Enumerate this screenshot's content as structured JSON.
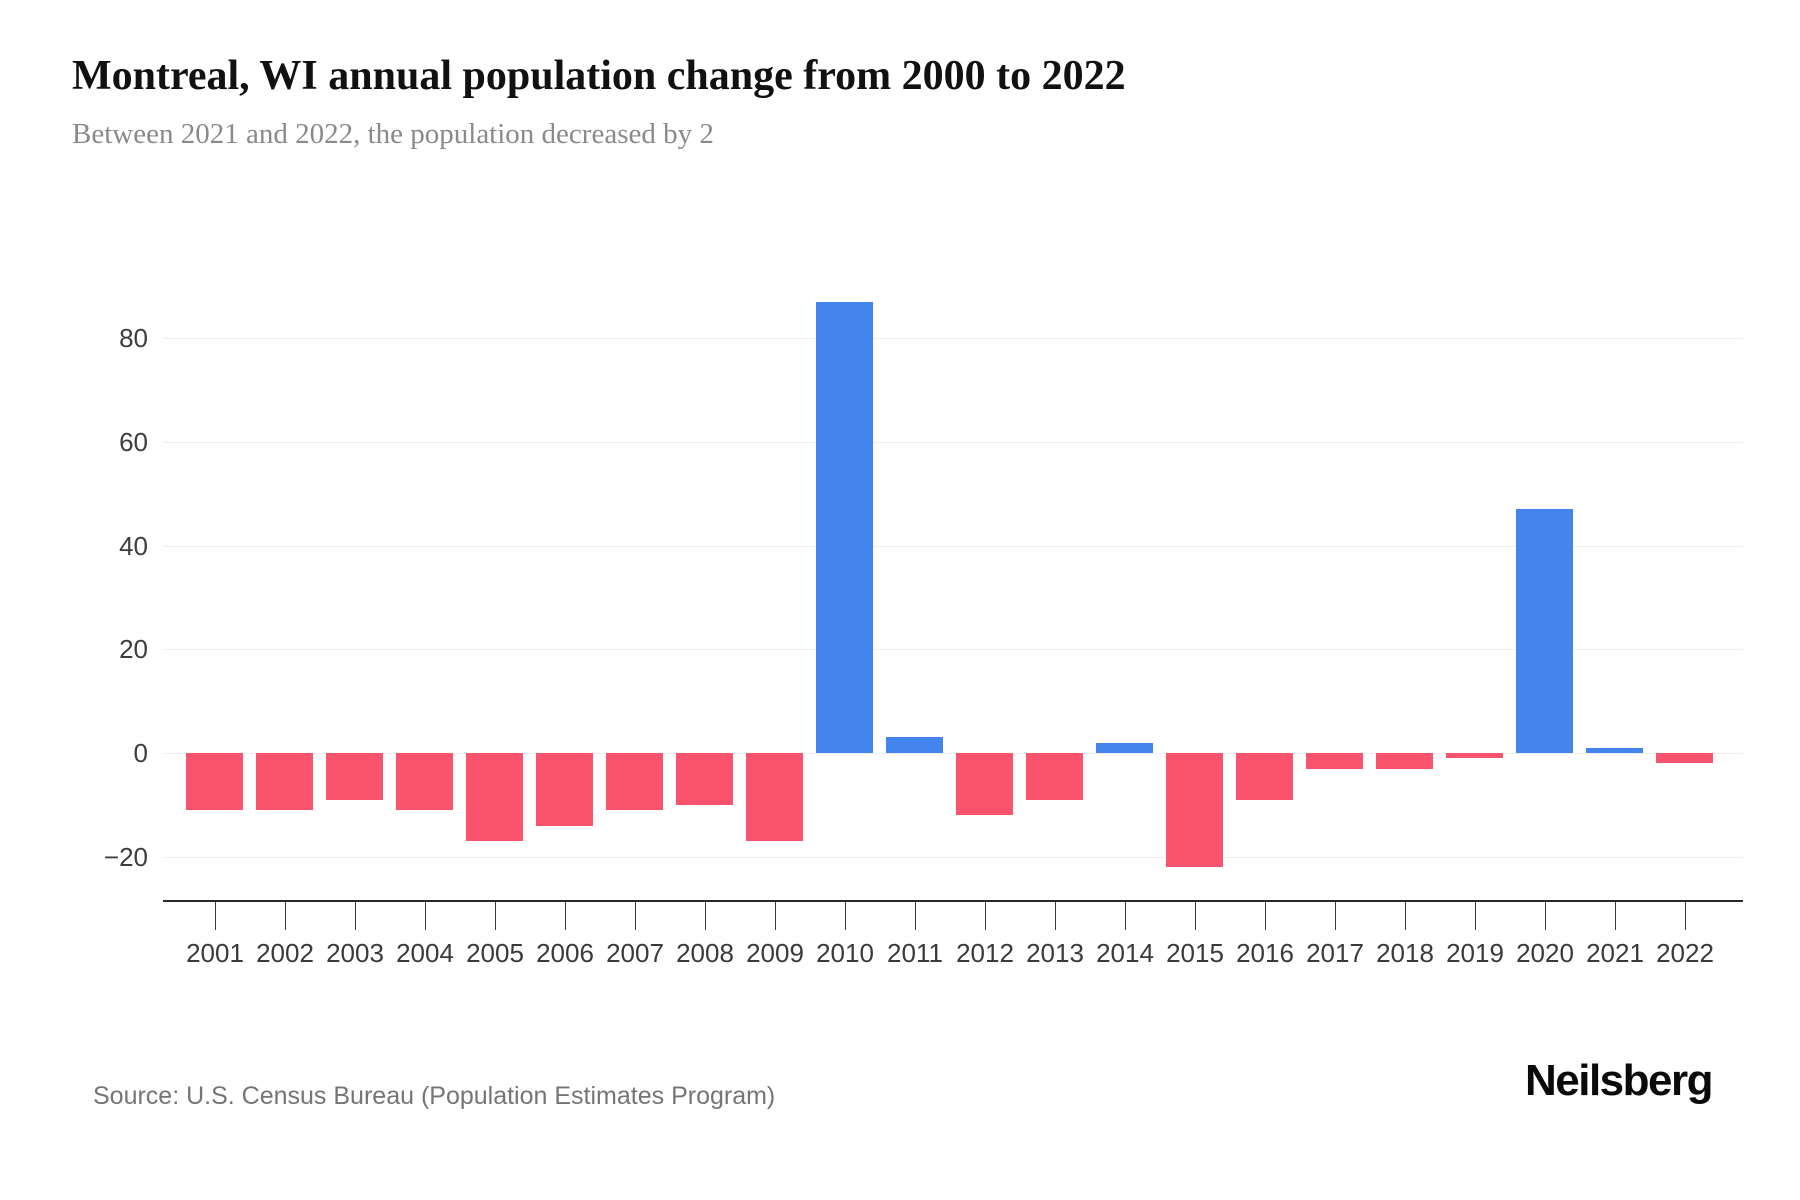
{
  "header": {
    "title": "Montreal, WI annual population change from 2000 to 2022",
    "subtitle": "Between 2021 and 2022, the population decreased by 2"
  },
  "footer": {
    "source": "Source: U.S. Census Bureau (Population Estimates Program)",
    "brand": "Neilsberg"
  },
  "chart_data": {
    "type": "bar",
    "title": "Montreal, WI annual population change from 2000 to 2022",
    "xlabel": "",
    "ylabel": "",
    "categories": [
      "2001",
      "2002",
      "2003",
      "2004",
      "2005",
      "2006",
      "2007",
      "2008",
      "2009",
      "2010",
      "2011",
      "2012",
      "2013",
      "2014",
      "2015",
      "2016",
      "2017",
      "2018",
      "2019",
      "2020",
      "2021",
      "2022"
    ],
    "values": [
      -11,
      -11,
      -9,
      -11,
      -17,
      -14,
      -11,
      -10,
      -17,
      87,
      3,
      -12,
      -9,
      2,
      -22,
      -9,
      -3,
      -3,
      -1,
      47,
      1,
      -2
    ],
    "ylim": [
      -28.5,
      95
    ],
    "yticks": [
      80,
      60,
      40,
      20,
      0,
      -20
    ],
    "ytick_labels": [
      "80",
      "60",
      "40",
      "20",
      "0",
      "−20"
    ],
    "grid": true,
    "legend": false,
    "positive_color": "#4484ed",
    "negative_color": "#f9536e",
    "gridline_color": "#efefef",
    "axis_color": "#2a2a2a"
  }
}
